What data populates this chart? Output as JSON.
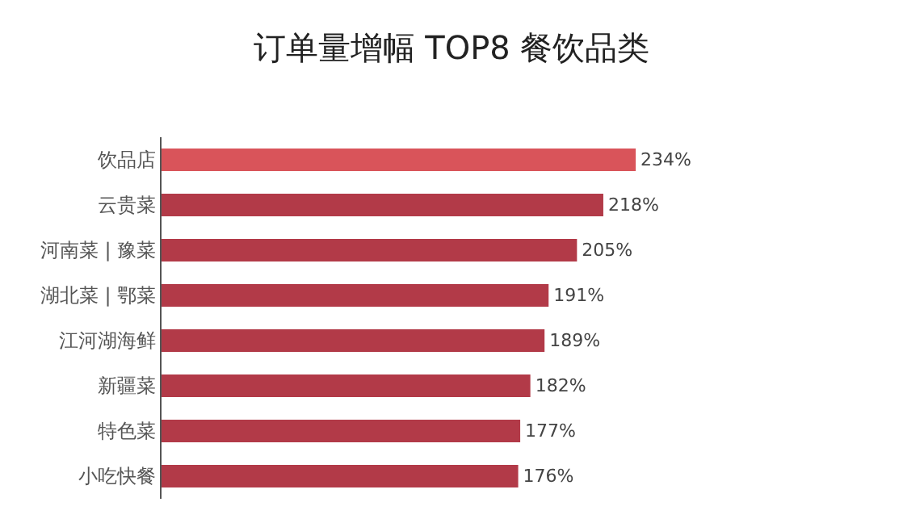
{
  "chart_data": {
    "type": "bar",
    "orientation": "horizontal",
    "title": "订单量增幅 TOP8 餐饮品类",
    "categories": [
      "饮品店",
      "云贵菜",
      "河南菜 | 豫菜",
      "湖北菜 | 鄂菜",
      "江河湖海鲜",
      "新疆菜",
      "特色菜",
      "小吃快餐"
    ],
    "values": [
      234,
      218,
      205,
      191,
      189,
      182,
      177,
      176
    ],
    "colors": [
      "#d9545a",
      "#b23a48",
      "#b23a48",
      "#b23a48",
      "#b23a48",
      "#b23a48",
      "#b23a48",
      "#b23a48"
    ],
    "value_labels": [
      "234%",
      "218%",
      "205%",
      "191%",
      "189%",
      "182%",
      "177%",
      "176%"
    ],
    "tick_labels": "y",
    "legend": false
  }
}
